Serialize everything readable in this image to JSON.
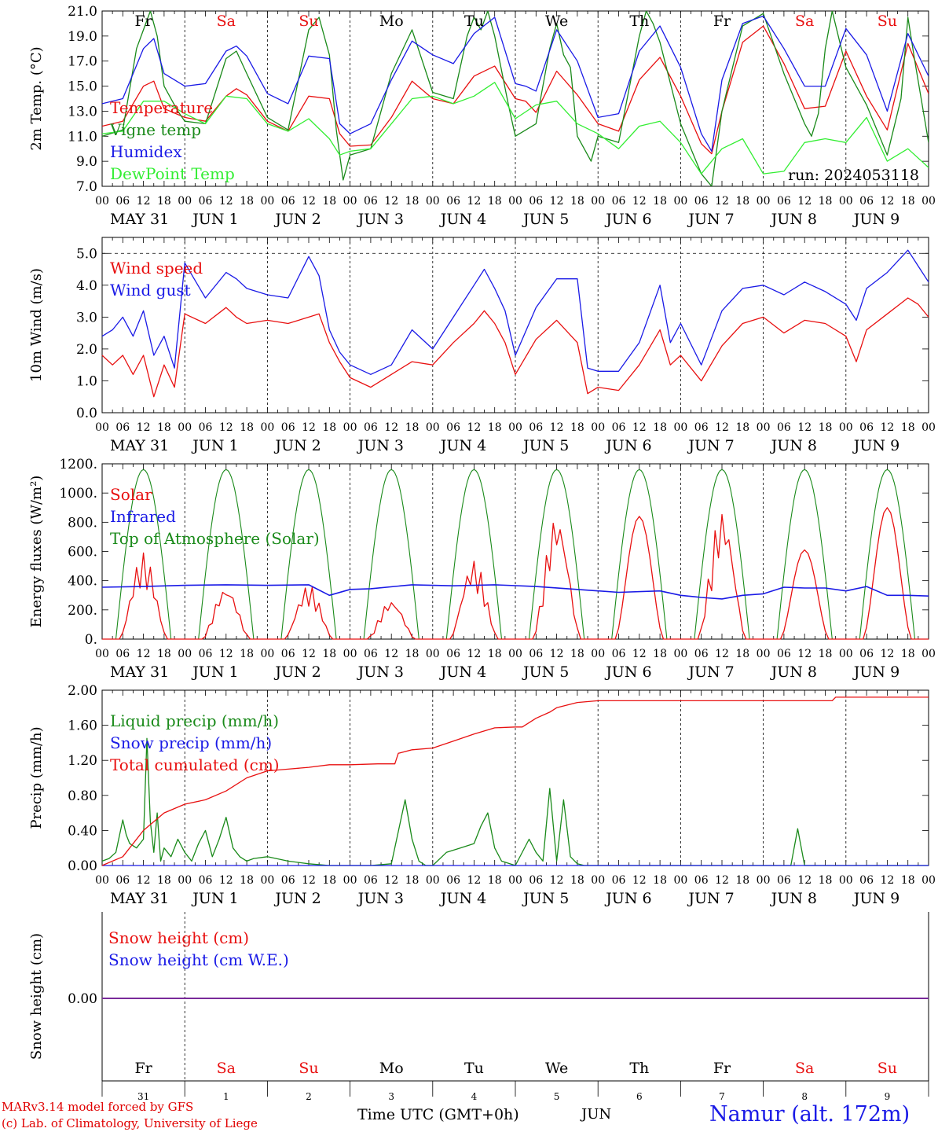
{
  "run_label": "run: 2024053118",
  "time_axis": {
    "hour_ticks": [
      "00",
      "06",
      "12",
      "18"
    ],
    "final_tick": "00",
    "date_labels": [
      "MAY 31",
      "JUN  1",
      "JUN  2",
      "JUN  3",
      "JUN  4",
      "JUN  5",
      "JUN  6",
      "JUN  7",
      "JUN  8",
      "JUN  9"
    ],
    "day_names": [
      "Fr",
      "Sa",
      "Su",
      "Mo",
      "Tu",
      "We",
      "Th",
      "Fr",
      "Sa",
      "Su"
    ],
    "day_numbers": [
      "31",
      "1",
      "2",
      "3",
      "4",
      "5",
      "6",
      "7",
      "8",
      "9"
    ],
    "month_label": "JUN",
    "footer_label": "Time UTC (GMT+0h)"
  },
  "footer": {
    "model": "MARv3.14 model forced by GFS",
    "copyright": "(c) Lab. of Climatology, University of Liege",
    "station": "Namur (alt. 172m)"
  },
  "colors": {
    "red": "#e81010",
    "green": "#1a8a1a",
    "blue": "#1a1ae6",
    "lightgreen": "#33ee33",
    "purple": "#7a2a9a",
    "weekday": "#000000",
    "weekend": "#e81010"
  },
  "chart_data": [
    {
      "id": "temperature",
      "type": "line",
      "ylabel": "2m Temp. (°C)",
      "ylim": [
        7.0,
        21.0
      ],
      "yticks": [
        "7.0",
        "9.0",
        "11.0",
        "13.0",
        "15.0",
        "17.0",
        "19.0",
        "21.0"
      ],
      "x_unit": "hours since 2024-05-31 00 UTC",
      "x_range": [
        0,
        240
      ],
      "series": [
        {
          "name": "Temperature",
          "color": "#e81010",
          "x": [
            0,
            6,
            12,
            15,
            18,
            24,
            30,
            36,
            39,
            42,
            48,
            54,
            60,
            66,
            69,
            72,
            78,
            84,
            90,
            96,
            102,
            108,
            114,
            120,
            123,
            126,
            132,
            138,
            144,
            150,
            156,
            162,
            168,
            174,
            177,
            180,
            186,
            192,
            198,
            204,
            210,
            216,
            222,
            228,
            234,
            240
          ],
          "y": [
            11.8,
            12.2,
            15.0,
            15.4,
            13.2,
            12.5,
            12.2,
            14.2,
            14.8,
            14.3,
            12.2,
            11.4,
            14.2,
            14.0,
            11.2,
            10.2,
            10.3,
            12.5,
            15.4,
            14.0,
            13.6,
            15.8,
            16.6,
            14.0,
            13.8,
            12.9,
            16.2,
            14.3,
            12.0,
            11.4,
            15.5,
            17.3,
            14.2,
            10.4,
            9.6,
            13.0,
            18.5,
            19.8,
            16.8,
            13.2,
            13.4,
            17.8,
            14.2,
            11.5,
            18.4,
            14.4
          ]
        },
        {
          "name": "Vigne temp",
          "color": "#1a8a1a",
          "x": [
            0,
            6,
            10,
            12,
            14,
            16,
            18,
            22,
            24,
            30,
            36,
            39,
            42,
            48,
            54,
            60,
            63,
            66,
            68,
            70,
            72,
            78,
            84,
            90,
            96,
            102,
            106,
            108,
            110,
            112,
            114,
            118,
            120,
            126,
            130,
            132,
            134,
            136,
            138,
            142,
            144,
            150,
            156,
            158,
            160,
            162,
            168,
            174,
            177,
            180,
            186,
            192,
            198,
            204,
            206,
            208,
            210,
            212,
            216,
            222,
            228,
            232,
            234,
            236,
            240
          ],
          "y": [
            11.0,
            11.5,
            18.0,
            19.5,
            21.0,
            19.0,
            15.0,
            13.0,
            12.2,
            12.0,
            17.2,
            17.8,
            16.0,
            12.5,
            11.5,
            19.5,
            20.5,
            17.5,
            11.5,
            7.5,
            9.5,
            10.0,
            16.0,
            19.5,
            14.5,
            14.0,
            19.0,
            20.5,
            19.5,
            21.0,
            19.0,
            13.5,
            11.0,
            12.0,
            18.0,
            20.0,
            17.5,
            16.5,
            11.0,
            9.0,
            11.0,
            10.5,
            19.0,
            21.0,
            20.0,
            18.5,
            12.0,
            8.0,
            7.0,
            13.0,
            19.8,
            20.8,
            16.0,
            12.0,
            11.0,
            12.8,
            18.0,
            21.0,
            16.5,
            13.5,
            9.5,
            14.0,
            20.5,
            17.0,
            10.5
          ]
        },
        {
          "name": "Humidex",
          "color": "#1a1ae6",
          "x": [
            0,
            6,
            12,
            15,
            18,
            24,
            30,
            36,
            39,
            42,
            48,
            54,
            60,
            66,
            69,
            72,
            78,
            84,
            90,
            96,
            102,
            108,
            114,
            120,
            123,
            126,
            132,
            138,
            144,
            150,
            156,
            162,
            168,
            174,
            177,
            180,
            186,
            192,
            198,
            204,
            210,
            216,
            222,
            228,
            234,
            240
          ],
          "y": [
            13.6,
            14.0,
            18.0,
            18.8,
            16.0,
            15.0,
            15.2,
            17.8,
            18.2,
            17.4,
            14.4,
            13.6,
            17.4,
            17.2,
            12.0,
            11.2,
            12.0,
            15.5,
            18.6,
            17.5,
            16.8,
            19.2,
            20.5,
            15.2,
            15.0,
            14.6,
            19.5,
            17.0,
            12.5,
            12.8,
            17.8,
            19.8,
            16.5,
            11.2,
            9.8,
            15.5,
            20.0,
            20.6,
            18.0,
            15.0,
            15.0,
            19.6,
            17.5,
            13.0,
            19.2,
            15.8
          ]
        },
        {
          "name": "DewPoint Temp",
          "color": "#33ee33",
          "x": [
            0,
            6,
            12,
            18,
            24,
            30,
            36,
            42,
            48,
            54,
            60,
            66,
            69,
            72,
            78,
            84,
            90,
            96,
            102,
            108,
            114,
            120,
            126,
            132,
            138,
            144,
            150,
            156,
            162,
            168,
            174,
            180,
            186,
            192,
            198,
            204,
            210,
            216,
            222,
            228,
            234,
            240
          ],
          "y": [
            11.2,
            11.4,
            13.8,
            13.8,
            12.8,
            12.0,
            14.2,
            14.0,
            12.0,
            11.4,
            12.4,
            10.8,
            9.5,
            9.8,
            10.0,
            12.0,
            14.0,
            14.2,
            13.6,
            14.2,
            15.3,
            12.4,
            13.5,
            13.8,
            12.0,
            11.2,
            10.0,
            11.8,
            12.2,
            10.5,
            8.0,
            10.0,
            10.8,
            8.0,
            8.2,
            10.5,
            10.8,
            10.5,
            12.5,
            9.0,
            10.0,
            8.5
          ]
        }
      ]
    },
    {
      "id": "wind",
      "type": "line",
      "ylabel": "10m Wind (m/s)",
      "ylim": [
        0.0,
        5.5
      ],
      "yticks": [
        "0.0",
        "1.0",
        "2.0",
        "3.0",
        "4.0",
        "5.0"
      ],
      "reference_line": 5.0,
      "x_range": [
        0,
        240
      ],
      "series": [
        {
          "name": "Wind speed",
          "color": "#e81010",
          "x": [
            0,
            3,
            6,
            9,
            12,
            15,
            18,
            21,
            24,
            30,
            36,
            39,
            42,
            48,
            54,
            60,
            63,
            66,
            69,
            72,
            78,
            84,
            90,
            96,
            102,
            108,
            111,
            114,
            117,
            120,
            126,
            132,
            138,
            141,
            144,
            150,
            156,
            162,
            165,
            168,
            174,
            180,
            186,
            192,
            198,
            204,
            210,
            216,
            219,
            222,
            228,
            234,
            237,
            240
          ],
          "y": [
            1.8,
            1.5,
            1.8,
            1.2,
            1.8,
            0.5,
            1.5,
            0.8,
            3.1,
            2.8,
            3.3,
            3.0,
            2.8,
            2.9,
            2.8,
            3.0,
            3.1,
            2.2,
            1.6,
            1.1,
            0.8,
            1.2,
            1.6,
            1.5,
            2.2,
            2.8,
            3.2,
            2.8,
            2.2,
            1.2,
            2.3,
            2.9,
            2.2,
            0.6,
            0.8,
            0.7,
            1.5,
            2.6,
            1.5,
            1.8,
            1.0,
            2.1,
            2.8,
            3.0,
            2.5,
            2.9,
            2.8,
            2.4,
            1.6,
            2.6,
            3.1,
            3.6,
            3.4,
            3.0
          ]
        },
        {
          "name": "Wind gust",
          "color": "#1a1ae6",
          "x": [
            0,
            3,
            6,
            9,
            12,
            15,
            18,
            21,
            24,
            30,
            36,
            39,
            42,
            48,
            54,
            60,
            63,
            66,
            69,
            72,
            78,
            84,
            90,
            96,
            102,
            108,
            111,
            114,
            117,
            120,
            126,
            132,
            138,
            141,
            144,
            150,
            156,
            162,
            165,
            168,
            174,
            180,
            186,
            192,
            198,
            204,
            210,
            216,
            219,
            222,
            228,
            234,
            237,
            240
          ],
          "y": [
            2.4,
            2.6,
            3.0,
            2.4,
            3.2,
            1.8,
            2.4,
            1.4,
            4.7,
            3.6,
            4.4,
            4.2,
            3.9,
            3.7,
            3.6,
            4.9,
            4.3,
            2.6,
            1.9,
            1.5,
            1.2,
            1.5,
            2.6,
            2.0,
            3.0,
            4.0,
            4.5,
            3.9,
            3.2,
            1.8,
            3.3,
            4.2,
            4.2,
            1.4,
            1.3,
            1.3,
            2.2,
            4.0,
            2.2,
            2.8,
            1.5,
            3.2,
            3.9,
            4.0,
            3.7,
            4.1,
            3.8,
            3.4,
            2.9,
            3.9,
            4.4,
            5.1,
            4.6,
            4.1
          ]
        }
      ]
    },
    {
      "id": "energy",
      "type": "line",
      "ylabel": "Energy fluxes (W/m²)",
      "ylim": [
        0,
        1200
      ],
      "yticks": [
        "0.",
        "200.",
        "400.",
        "600.",
        "800.",
        "1000.",
        "1200."
      ],
      "x_range": [
        0,
        240
      ],
      "solar_peak_by_day": [
        590,
        360,
        370,
        270,
        540,
        850,
        840,
        880,
        610,
        900
      ],
      "series": [
        {
          "name": "Solar",
          "color": "#e81010"
        },
        {
          "name": "Infrared",
          "color": "#1a1ae6",
          "x": [
            0,
            12,
            24,
            36,
            48,
            60,
            66,
            72,
            78,
            90,
            102,
            114,
            126,
            138,
            150,
            162,
            168,
            174,
            180,
            186,
            192,
            198,
            204,
            210,
            216,
            222,
            228,
            234,
            240
          ],
          "y": [
            355,
            360,
            368,
            372,
            368,
            372,
            300,
            340,
            345,
            372,
            365,
            372,
            360,
            340,
            320,
            330,
            300,
            285,
            275,
            300,
            310,
            355,
            350,
            350,
            330,
            360,
            300,
            300,
            295
          ]
        },
        {
          "name": "Top of Atmosphere (Solar)",
          "color": "#1a8a1a",
          "peak": 1160,
          "rise_hour": 4,
          "set_hour": 20
        }
      ]
    },
    {
      "id": "precip",
      "type": "line",
      "ylabel": "Precip (mm/h)",
      "ylim": [
        0.0,
        2.0
      ],
      "yticks": [
        "0.00",
        "0.40",
        "0.80",
        "1.20",
        "1.60",
        "2.00"
      ],
      "x_range": [
        0,
        240
      ],
      "series": [
        {
          "name": "Liquid precip (mm/h)",
          "color": "#1a8a1a",
          "x": [
            0,
            2,
            4,
            6,
            7,
            8,
            10,
            12,
            13,
            14,
            15,
            16,
            17,
            18,
            20,
            22,
            24,
            26,
            28,
            30,
            32,
            34,
            36,
            38,
            40,
            42,
            44,
            48,
            54,
            60,
            66,
            72,
            78,
            84,
            88,
            90,
            92,
            94,
            96,
            100,
            104,
            108,
            110,
            112,
            114,
            116,
            120,
            124,
            126,
            128,
            130,
            132,
            134,
            136,
            138,
            140,
            144,
            150,
            200,
            202,
            204,
            240
          ],
          "y": [
            0.05,
            0.08,
            0.15,
            0.52,
            0.35,
            0.25,
            0.2,
            0.3,
            1.45,
            0.5,
            0.15,
            0.6,
            0.05,
            0.2,
            0.1,
            0.3,
            0.15,
            0.05,
            0.25,
            0.4,
            0.1,
            0.3,
            0.55,
            0.2,
            0.1,
            0.05,
            0.08,
            0.1,
            0.05,
            0.02,
            0.0,
            0.0,
            0.0,
            0.02,
            0.75,
            0.3,
            0.05,
            0.0,
            0.0,
            0.15,
            0.2,
            0.25,
            0.45,
            0.6,
            0.2,
            0.05,
            0.0,
            0.3,
            0.15,
            0.05,
            0.88,
            0.05,
            0.75,
            0.1,
            0.02,
            0.0,
            0.0,
            0.0,
            0.0,
            0.42,
            0.0,
            0.0
          ]
        },
        {
          "name": "Snow precip (mm/h)",
          "color": "#1a1ae6",
          "x": [
            0,
            240
          ],
          "y": [
            0,
            0
          ]
        },
        {
          "name": "Total cumulated (cm)",
          "color": "#e81010",
          "x": [
            0,
            6,
            12,
            18,
            24,
            30,
            36,
            42,
            48,
            54,
            60,
            66,
            72,
            80,
            85,
            86,
            90,
            96,
            102,
            108,
            114,
            120,
            122,
            126,
            130,
            132,
            138,
            144,
            150,
            156,
            170,
            190,
            200,
            212,
            213,
            214,
            240
          ],
          "y": [
            0.0,
            0.1,
            0.4,
            0.6,
            0.7,
            0.75,
            0.85,
            1.0,
            1.08,
            1.1,
            1.12,
            1.15,
            1.15,
            1.16,
            1.16,
            1.28,
            1.32,
            1.34,
            1.42,
            1.5,
            1.57,
            1.58,
            1.58,
            1.68,
            1.75,
            1.8,
            1.86,
            1.88,
            1.88,
            1.88,
            1.88,
            1.88,
            1.88,
            1.88,
            1.92,
            1.92,
            1.92
          ]
        }
      ]
    },
    {
      "id": "snow",
      "type": "line",
      "ylabel": "Snow height (cm)",
      "yticks": [
        "0.00"
      ],
      "x_range": [
        0,
        240
      ],
      "series": [
        {
          "name": "Snow height (cm)",
          "color": "#e81010",
          "x": [
            0,
            240
          ],
          "y": [
            0,
            0
          ]
        },
        {
          "name": "Snow height (cm W.E.)",
          "color": "#1a1ae6",
          "x": [
            0,
            240
          ],
          "y": [
            0,
            0
          ]
        }
      ]
    }
  ]
}
